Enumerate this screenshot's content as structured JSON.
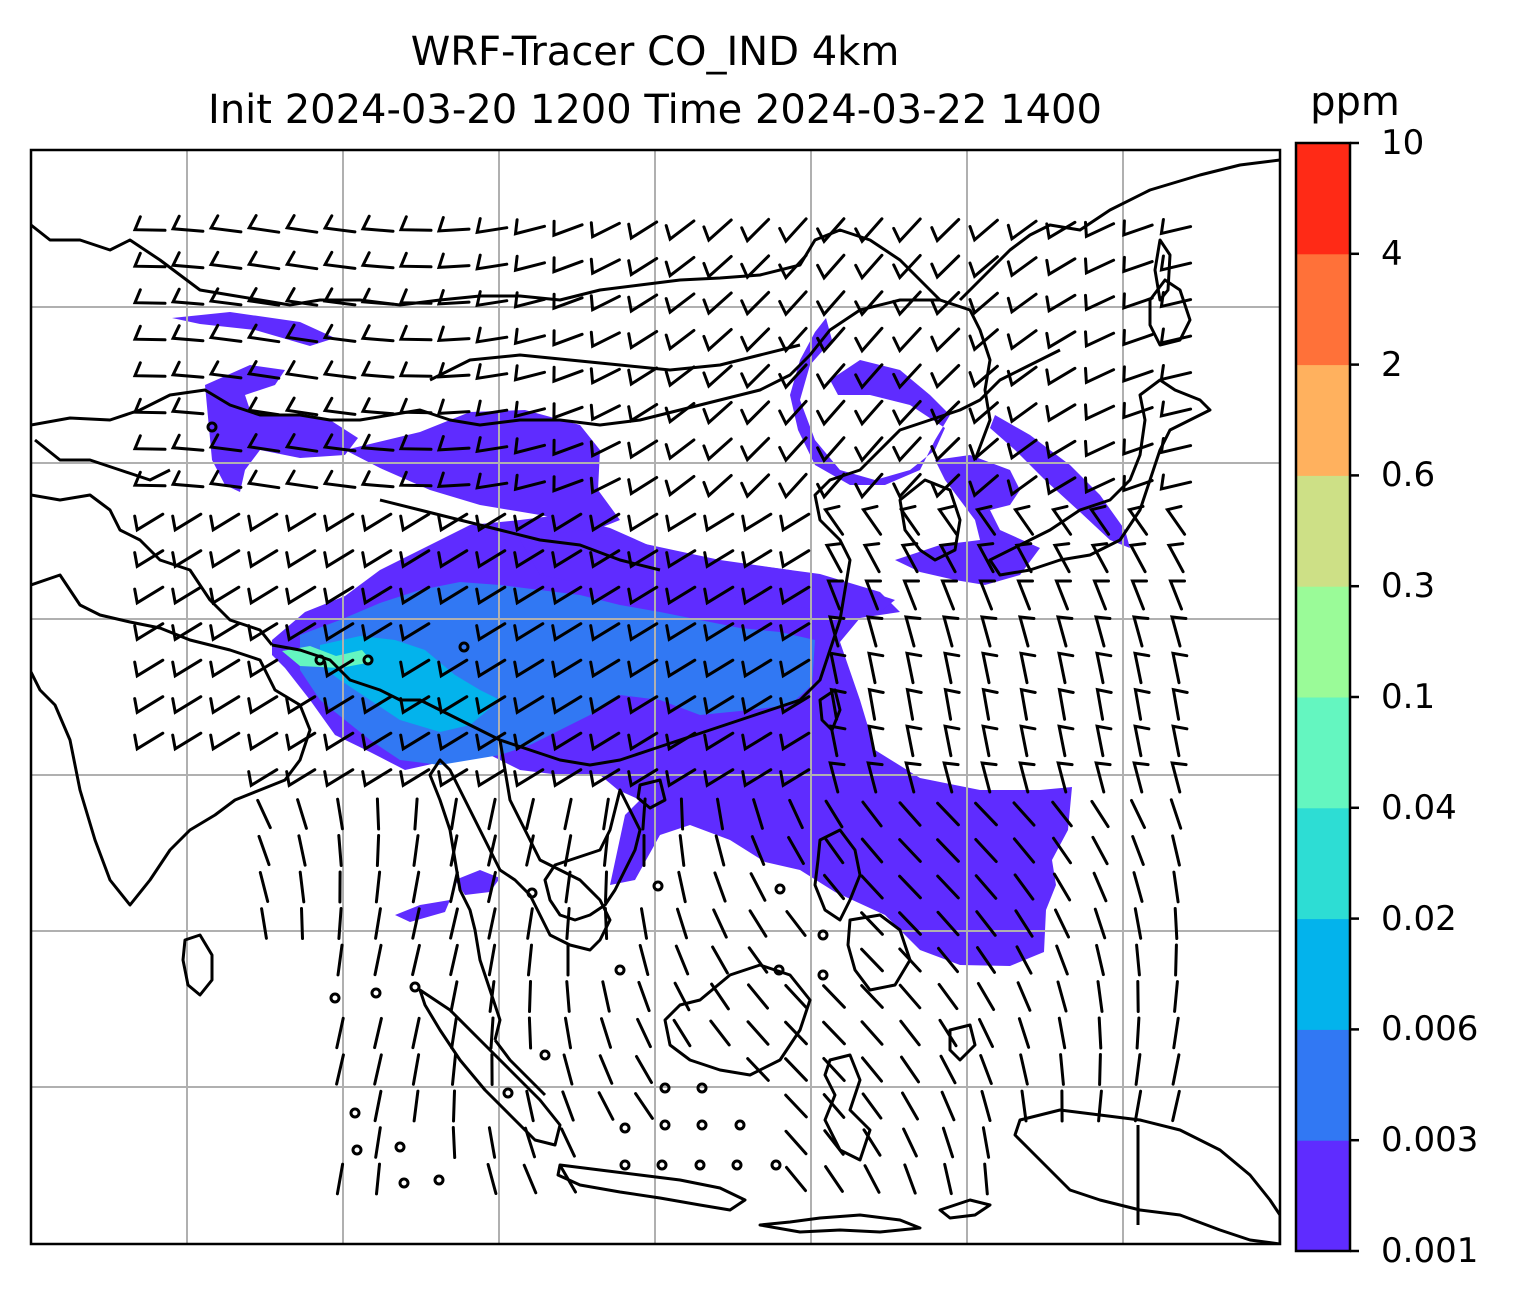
{
  "title": {
    "line1": "WRF-Tracer CO_IND 4km",
    "line2": "Init 2024-03-20 1200 Time 2024-03-22 1400"
  },
  "colorbar": {
    "units": "ppm",
    "ticks": [
      "0.001",
      "0.003",
      "0.006",
      "0.02",
      "0.04",
      "0.1",
      "0.3",
      "0.6",
      "2",
      "4",
      "10"
    ],
    "colors": [
      "#5f2cff",
      "#3178f3",
      "#03b3ec",
      "#2dddd4",
      "#64f6c0",
      "#9afb98",
      "#cde086",
      "#ffb15e",
      "#ff7139",
      "#ff2a16"
    ]
  },
  "map": {
    "field": "CO_IND tracer concentration",
    "gridlines": true,
    "overlay": "wind barbs",
    "colors": {
      "plume_main": "#5f2cff",
      "plume_mid": "#3178f3",
      "plume_high": "#03b3ec",
      "plume_peak": "#64f6c0",
      "grid": "#b0b0b0",
      "coast": "#000000"
    }
  }
}
